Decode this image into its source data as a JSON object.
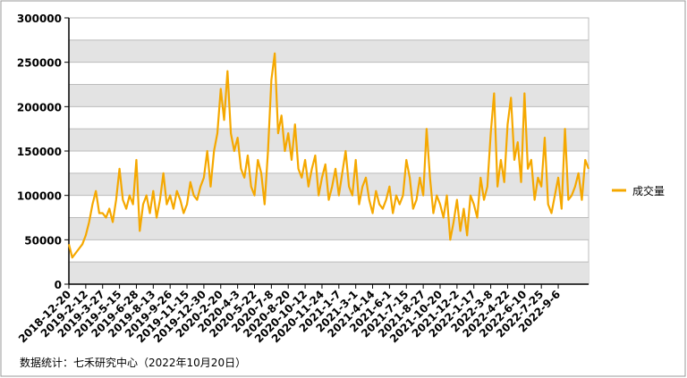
{
  "chart_data": {
    "type": "line",
    "source": "数据统计：七禾研究中心（2022年10月20日）",
    "categories": [
      "2018-12-20",
      null,
      null,
      null,
      null,
      "2019-2-12",
      null,
      null,
      null,
      null,
      "2019-3-27",
      null,
      null,
      null,
      null,
      "2019-5-15",
      null,
      null,
      null,
      null,
      "2019-6-28",
      null,
      null,
      null,
      null,
      "2019-8-13",
      null,
      null,
      null,
      null,
      "2019-9-26",
      null,
      null,
      null,
      null,
      "2019-11-15",
      null,
      null,
      null,
      null,
      "2019-12-30",
      null,
      null,
      null,
      null,
      "2020-2-20",
      null,
      null,
      null,
      null,
      "2020-4-3",
      null,
      null,
      null,
      null,
      "2020-5-22",
      null,
      null,
      null,
      null,
      "2020-7-8",
      null,
      null,
      null,
      null,
      "2020-8-20",
      null,
      null,
      null,
      null,
      "2020-10-12",
      null,
      null,
      null,
      null,
      "2020-11-24",
      null,
      null,
      null,
      null,
      "2021-1-7",
      null,
      null,
      null,
      null,
      "2021-3-1",
      null,
      null,
      null,
      null,
      "2021-4-14",
      null,
      null,
      null,
      null,
      "2021-6-1",
      null,
      null,
      null,
      null,
      "2021-7-15",
      null,
      null,
      null,
      null,
      "2021-8-27",
      null,
      null,
      null,
      null,
      "2021-10-20",
      null,
      null,
      null,
      null,
      "2021-12-2",
      null,
      null,
      null,
      null,
      "2022-1-17",
      null,
      null,
      null,
      null,
      "2022-3-8",
      null,
      null,
      null,
      null,
      "2022-4-22",
      null,
      null,
      null,
      null,
      "2022-6-10",
      null,
      null,
      null,
      null,
      "2022-7-25",
      null,
      null,
      null,
      null,
      "2022-9-6",
      null,
      null,
      null,
      null,
      null,
      null,
      null,
      null,
      null
    ],
    "series": [
      {
        "name": "成交量",
        "color": "#f5a800",
        "values": [
          45000,
          30000,
          35000,
          40000,
          45000,
          55000,
          70000,
          90000,
          105000,
          80000,
          80000,
          75000,
          85000,
          70000,
          95000,
          130000,
          95000,
          85000,
          100000,
          90000,
          140000,
          60000,
          90000,
          100000,
          80000,
          105000,
          75000,
          95000,
          125000,
          90000,
          100000,
          85000,
          105000,
          95000,
          80000,
          90000,
          115000,
          100000,
          95000,
          110000,
          120000,
          150000,
          110000,
          150000,
          170000,
          220000,
          185000,
          240000,
          170000,
          150000,
          165000,
          130000,
          120000,
          145000,
          110000,
          100000,
          140000,
          125000,
          90000,
          150000,
          230000,
          260000,
          170000,
          190000,
          150000,
          170000,
          140000,
          180000,
          130000,
          120000,
          140000,
          110000,
          130000,
          145000,
          100000,
          120000,
          135000,
          95000,
          110000,
          130000,
          100000,
          125000,
          150000,
          110000,
          100000,
          140000,
          90000,
          110000,
          120000,
          95000,
          80000,
          105000,
          90000,
          85000,
          95000,
          110000,
          80000,
          100000,
          90000,
          100000,
          140000,
          120000,
          85000,
          95000,
          120000,
          100000,
          175000,
          120000,
          80000,
          100000,
          90000,
          75000,
          100000,
          50000,
          70000,
          95000,
          60000,
          85000,
          55000,
          100000,
          90000,
          75000,
          120000,
          95000,
          110000,
          170000,
          215000,
          110000,
          140000,
          115000,
          180000,
          210000,
          140000,
          160000,
          115000,
          215000,
          130000,
          140000,
          95000,
          120000,
          110000,
          165000,
          90000,
          80000,
          100000,
          120000,
          85000,
          175000,
          95000,
          100000,
          110000,
          125000,
          95000,
          140000,
          130000
        ]
      }
    ],
    "ylim": [
      0,
      300000
    ],
    "yticks": [
      0,
      50000,
      100000,
      150000,
      200000,
      250000,
      300000
    ]
  }
}
